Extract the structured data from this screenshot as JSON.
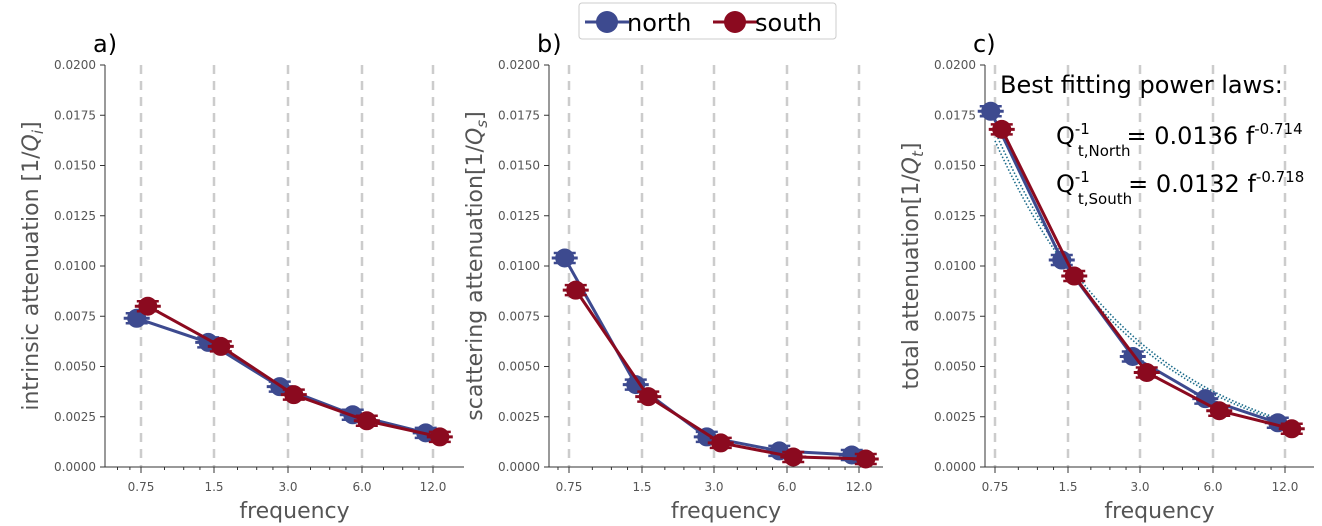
{
  "colors": {
    "north": "#3d4a8f",
    "south": "#8b0a1f",
    "fit": "#1b6b8a",
    "grid": "#cccccc",
    "axis": "#333333",
    "text": "#555555"
  },
  "legend": {
    "placement": "top-center",
    "entries": [
      "north",
      "south"
    ]
  },
  "chart_data": [
    {
      "type": "line",
      "panel_label": "a)",
      "xlabel": "frequency",
      "ylabel": "intrinsic attenuation [1/Q_i]",
      "ylabel_main": "intrinsic attenuation [1/",
      "ylabel_q": "Q",
      "ylabel_sub": "i",
      "ylabel_end": "]",
      "x_scale": "log2",
      "categories": [
        "0.75",
        "1.5",
        "3.0",
        "6.0",
        "12.0"
      ],
      "ylim": [
        0,
        0.02
      ],
      "yticks": [
        "0.0000",
        "0.0025",
        "0.0050",
        "0.0075",
        "0.0100",
        "0.0125",
        "0.0150",
        "0.0175",
        "0.0200"
      ],
      "grid": "vertical dashed at categories",
      "series": [
        {
          "name": "north",
          "x": [
            0.72,
            1.42,
            2.8,
            5.6,
            11.2
          ],
          "values": [
            0.0074,
            0.0062,
            0.004,
            0.0026,
            0.0017
          ]
        },
        {
          "name": "south",
          "x": [
            0.8,
            1.6,
            3.2,
            6.4,
            12.8
          ],
          "values": [
            0.008,
            0.006,
            0.0036,
            0.0023,
            0.0015
          ]
        }
      ]
    },
    {
      "type": "line",
      "panel_label": "b)",
      "xlabel": "frequency",
      "ylabel": "scattering attenuation[1/Q_s]",
      "ylabel_main": "scattering attenuation[1/",
      "ylabel_q": "Q",
      "ylabel_sub": "s",
      "ylabel_end": "]",
      "x_scale": "log2",
      "categories": [
        "0.75",
        "1.5",
        "3.0",
        "6.0",
        "12.0"
      ],
      "ylim": [
        0,
        0.02
      ],
      "yticks": [
        "0.0000",
        "0.0025",
        "0.0050",
        "0.0075",
        "0.0100",
        "0.0125",
        "0.0150",
        "0.0175",
        "0.0200"
      ],
      "grid": "vertical dashed at categories",
      "series": [
        {
          "name": "north",
          "x": [
            0.72,
            1.42,
            2.8,
            5.6,
            11.2
          ],
          "values": [
            0.0104,
            0.0041,
            0.0015,
            0.0008,
            0.0006
          ]
        },
        {
          "name": "south",
          "x": [
            0.8,
            1.6,
            3.2,
            6.4,
            12.8
          ],
          "values": [
            0.0088,
            0.0035,
            0.0012,
            0.0005,
            0.0004
          ]
        }
      ]
    },
    {
      "type": "line",
      "panel_label": "c)",
      "xlabel": "frequency",
      "ylabel": "total attenuation[1/Q_t]",
      "ylabel_main": "total attenuation[1/",
      "ylabel_q": "Q",
      "ylabel_sub": "t",
      "ylabel_end": "]",
      "x_scale": "log2",
      "categories": [
        "0.75",
        "1.5",
        "3.0",
        "6.0",
        "12.0"
      ],
      "ylim": [
        0,
        0.02
      ],
      "yticks": [
        "0.0000",
        "0.0025",
        "0.0050",
        "0.0075",
        "0.0100",
        "0.0125",
        "0.0150",
        "0.0175",
        "0.0200"
      ],
      "grid": "vertical dashed at categories",
      "series": [
        {
          "name": "north",
          "x": [
            0.72,
            1.42,
            2.8,
            5.6,
            11.2
          ],
          "values": [
            0.0177,
            0.0103,
            0.0055,
            0.0034,
            0.0022
          ]
        },
        {
          "name": "south",
          "x": [
            0.8,
            1.6,
            3.2,
            6.4,
            12.8
          ],
          "values": [
            0.0168,
            0.0095,
            0.0047,
            0.0028,
            0.0019
          ]
        }
      ],
      "power_law_fits": [
        {
          "series": "north",
          "coefficient": 0.0136,
          "exponent": -0.714
        },
        {
          "series": "south",
          "coefficient": 0.0132,
          "exponent": -0.718
        }
      ],
      "annotation": {
        "title": "Best fitting power laws:",
        "lines": [
          {
            "base": "Q",
            "sup": "-1",
            "sub": "t,North",
            "text": "= 0.0136 f",
            "exp": "-0.714"
          },
          {
            "base": "Q",
            "sup": "-1",
            "sub": "t,South",
            "text": "= 0.0132 f",
            "exp": "-0.718"
          }
        ]
      }
    }
  ]
}
